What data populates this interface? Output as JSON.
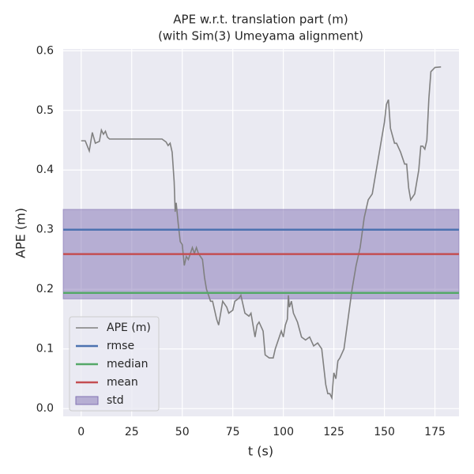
{
  "chart_data": {
    "type": "line",
    "title": "APE w.r.t. translation part (m)",
    "subtitle": "(with Sim(3) Umeyama alignment)",
    "x_label": "t (s)",
    "y_label": "APE (m)",
    "xlim": [
      -8.9,
      186.9
    ],
    "ylim": [
      -0.013,
      0.603
    ],
    "xticks": [
      0,
      25,
      50,
      75,
      100,
      125,
      150,
      175
    ],
    "yticks": [
      {
        "value": 0,
        "label": "0.0"
      },
      0.1,
      0.2,
      0.3,
      0.4,
      0.5,
      0.6
    ],
    "grid": true,
    "legend": "lower left",
    "x": [
      0,
      2,
      4,
      5.5,
      7,
      9,
      10,
      11,
      12,
      13,
      14,
      20,
      30,
      40,
      42,
      43,
      44,
      45,
      46,
      46.5,
      47,
      48,
      49,
      50,
      51,
      52,
      53,
      55,
      56,
      57,
      58,
      60,
      61,
      62,
      63,
      64,
      65,
      67,
      68,
      70,
      72,
      73,
      75,
      76,
      78,
      79,
      81,
      83,
      84,
      86,
      87,
      88,
      90,
      91,
      93,
      95,
      96,
      98,
      99,
      100,
      101,
      102,
      102.5,
      103,
      104,
      105,
      107,
      109,
      111,
      113,
      115,
      117,
      119,
      120,
      121,
      122,
      123,
      124,
      125,
      126,
      127,
      128,
      130,
      132,
      134,
      136,
      138,
      140,
      142,
      144,
      146,
      148,
      150,
      151,
      152,
      153,
      155,
      156,
      158,
      160,
      161,
      162,
      163,
      165,
      167,
      168,
      169,
      170,
      171,
      172,
      173,
      175,
      178
    ],
    "series": [
      {
        "name": "APE (m)",
        "color": "#808080",
        "values": [
          0.449,
          0.449,
          0.432,
          0.463,
          0.445,
          0.448,
          0.467,
          0.46,
          0.465,
          0.455,
          0.452,
          0.452,
          0.452,
          0.452,
          0.447,
          0.441,
          0.445,
          0.43,
          0.38,
          0.33,
          0.345,
          0.31,
          0.28,
          0.275,
          0.24,
          0.255,
          0.25,
          0.27,
          0.26,
          0.27,
          0.26,
          0.25,
          0.22,
          0.2,
          0.19,
          0.18,
          0.18,
          0.15,
          0.14,
          0.18,
          0.17,
          0.16,
          0.165,
          0.18,
          0.185,
          0.19,
          0.16,
          0.155,
          0.16,
          0.12,
          0.14,
          0.145,
          0.13,
          0.09,
          0.085,
          0.085,
          0.1,
          0.12,
          0.13,
          0.12,
          0.14,
          0.15,
          0.19,
          0.17,
          0.18,
          0.16,
          0.145,
          0.12,
          0.115,
          0.12,
          0.105,
          0.11,
          0.1,
          0.07,
          0.04,
          0.025,
          0.025,
          0.018,
          0.06,
          0.05,
          0.08,
          0.085,
          0.1,
          0.15,
          0.2,
          0.24,
          0.27,
          0.32,
          0.35,
          0.36,
          0.4,
          0.44,
          0.48,
          0.51,
          0.518,
          0.47,
          0.445,
          0.445,
          0.43,
          0.41,
          0.41,
          0.37,
          0.35,
          0.36,
          0.4,
          0.44,
          0.44,
          0.435,
          0.45,
          0.52,
          0.565,
          0.572,
          0.573
        ]
      }
    ],
    "stats": [
      {
        "name": "rmse",
        "color": "#4c72b0",
        "value": 0.3
      },
      {
        "name": "median",
        "color": "#55a868",
        "value": 0.194
      },
      {
        "name": "mean",
        "color": "#c44e52",
        "value": 0.259
      }
    ],
    "std": {
      "name": "std",
      "color": "#8172b3",
      "value": 0.075
    }
  }
}
